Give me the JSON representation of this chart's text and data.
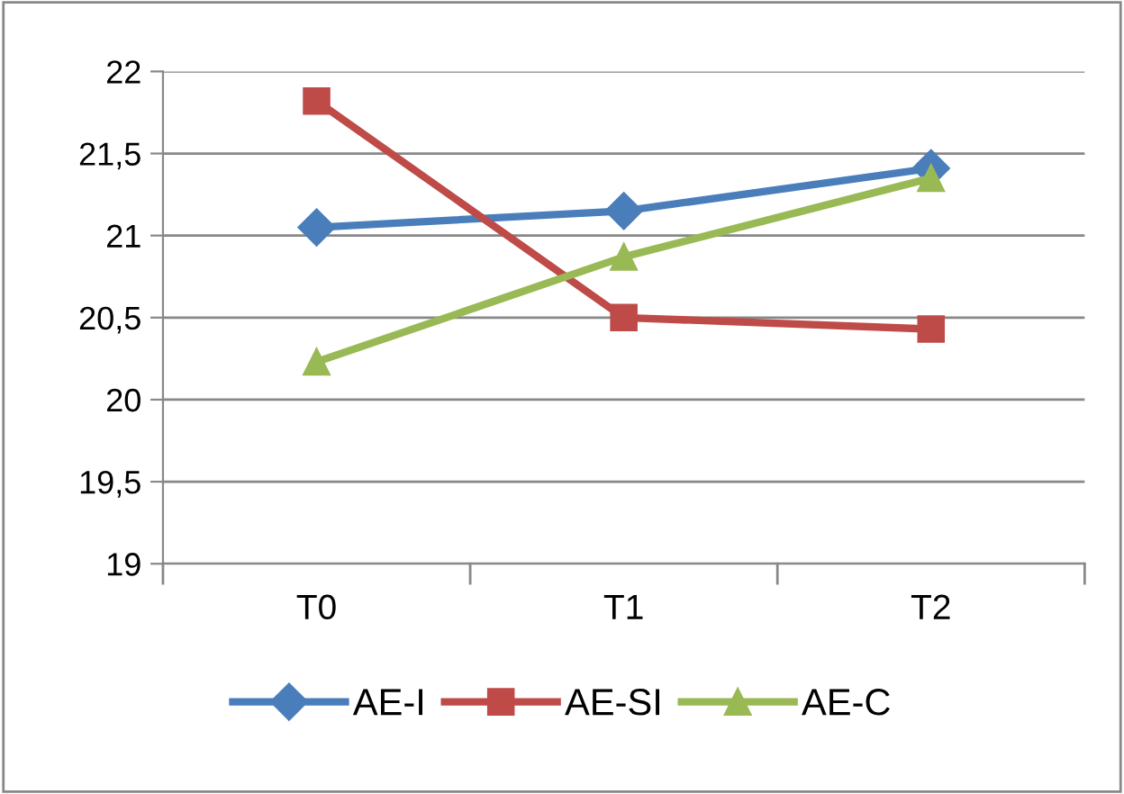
{
  "chart_data": {
    "type": "line",
    "categories": [
      "T0",
      "T1",
      "T2"
    ],
    "series": [
      {
        "name": "AE-I",
        "color": "#4a7ebb",
        "marker": "diamond",
        "values": [
          21.05,
          21.15,
          21.41
        ]
      },
      {
        "name": "AE-SI",
        "color": "#be4b48",
        "marker": "square",
        "values": [
          21.82,
          20.5,
          20.43
        ]
      },
      {
        "name": "AE-C",
        "color": "#98b954",
        "marker": "triangle",
        "values": [
          20.23,
          20.87,
          21.35
        ]
      }
    ],
    "ylim": [
      19,
      22
    ],
    "yticks": [
      19,
      {
        "value": 19.5,
        "label": "19,5"
      },
      20,
      {
        "value": 20.5,
        "label": "20,5"
      },
      21,
      {
        "value": 21.5,
        "label": "21,5"
      },
      22
    ],
    "grid": "y",
    "legend": "bottom",
    "line_style": "solid"
  }
}
